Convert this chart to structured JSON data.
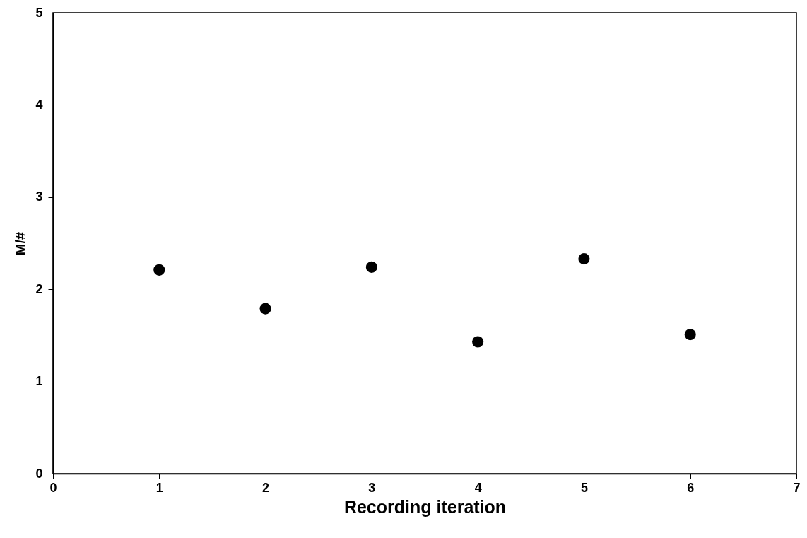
{
  "chart_data": {
    "type": "scatter",
    "xlabel": "Recording iteration",
    "ylabel": "M/#",
    "x": [
      1,
      2,
      3,
      4,
      5,
      6
    ],
    "series": [
      {
        "color": "#000000",
        "values": [
          2.21,
          1.79,
          2.24,
          1.43,
          2.33,
          1.51
        ]
      }
    ],
    "xlim": [
      0,
      7
    ],
    "xticks": [
      0,
      1,
      2,
      3,
      4,
      5,
      6,
      7
    ],
    "ylim": [
      0,
      5
    ],
    "yticks": [
      0,
      1,
      2,
      3,
      4,
      5
    ],
    "grid": false,
    "marker": "circle"
  }
}
